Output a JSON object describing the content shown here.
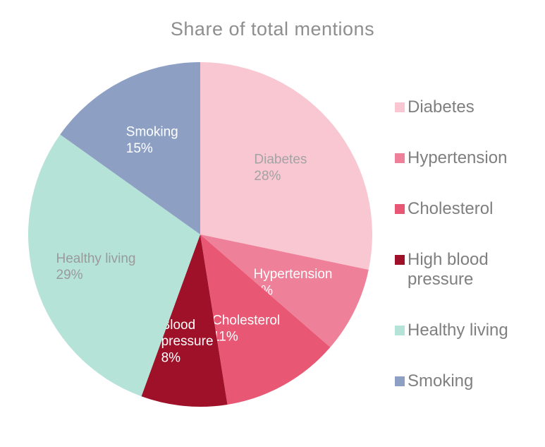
{
  "chart_data": {
    "type": "pie",
    "title": "Share of total mentions",
    "start_angle_deg": 0,
    "direction": "clockwise",
    "legend_position": "right",
    "slices": [
      {
        "label": "Diabetes",
        "value": 28,
        "color": "#f8c7d2",
        "label_lines": [
          "Diabetes",
          "28%"
        ],
        "label_color": "#a3a3a3"
      },
      {
        "label": "Hypertension",
        "value": 8,
        "color": "#ef8099",
        "label_lines": [
          "Hypertension",
          "8%"
        ],
        "label_color": "#ffffff"
      },
      {
        "label": "Cholesterol",
        "value": 11,
        "color": "#e85874",
        "label_lines": [
          "Cholesterol",
          "11%"
        ],
        "label_color": "#ffffff"
      },
      {
        "label": "High blood pressure",
        "value": 8,
        "color": "#9e1128",
        "label_lines": [
          "Blood",
          "pressure",
          "8%"
        ],
        "label_color": "#ffffff"
      },
      {
        "label": "Healthy living",
        "value": 29,
        "color": "#b5e3d8",
        "label_lines": [
          "Healthy living",
          "29%"
        ],
        "label_color": "#9a9a9a"
      },
      {
        "label": "Smoking",
        "value": 15,
        "color": "#8da0c4",
        "label_lines": [
          "Smoking",
          "15%"
        ],
        "label_color": "#ffffff"
      }
    ],
    "legend_labels": [
      "Diabetes",
      "Hypertension",
      "Cholesterol",
      "High blood pressure",
      "Healthy living",
      "Smoking"
    ]
  }
}
